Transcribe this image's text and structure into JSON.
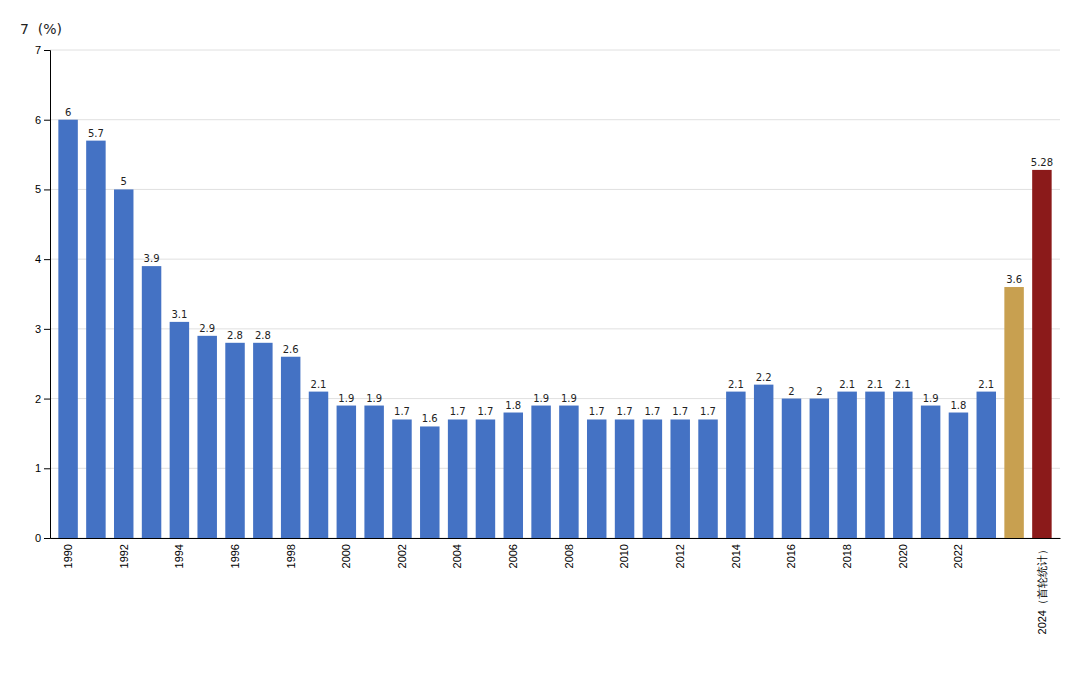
{
  "chart_data": {
    "type": "bar",
    "ylabel": "7  (%)",
    "categories": [
      "1990",
      null,
      "1992",
      null,
      "1994",
      null,
      "1996",
      null,
      "1998",
      null,
      "2000",
      null,
      "2002",
      null,
      "2004",
      null,
      "2006",
      null,
      "2008",
      null,
      "2010",
      null,
      "2012",
      null,
      "2014",
      null,
      "2016",
      null,
      "2018",
      null,
      "2020",
      null,
      "2022",
      null,
      null,
      "2024（首轮统计）"
    ],
    "values": [
      6.0,
      5.7,
      5.0,
      3.9,
      3.1,
      2.9,
      2.8,
      2.8,
      2.6,
      2.1,
      1.9,
      1.9,
      1.7,
      1.6,
      1.7,
      1.7,
      1.8,
      1.9,
      1.9,
      1.7,
      1.7,
      1.7,
      1.7,
      1.7,
      2.1,
      2.2,
      2.0,
      2.0,
      2.1,
      2.1,
      2.1,
      1.9,
      1.8,
      2.1,
      3.6,
      5.28
    ],
    "colors": [
      "#4472C4",
      "#4472C4",
      "#4472C4",
      "#4472C4",
      "#4472C4",
      "#4472C4",
      "#4472C4",
      "#4472C4",
      "#4472C4",
      "#4472C4",
      "#4472C4",
      "#4472C4",
      "#4472C4",
      "#4472C4",
      "#4472C4",
      "#4472C4",
      "#4472C4",
      "#4472C4",
      "#4472C4",
      "#4472C4",
      "#4472C4",
      "#4472C4",
      "#4472C4",
      "#4472C4",
      "#4472C4",
      "#4472C4",
      "#4472C4",
      "#4472C4",
      "#4472C4",
      "#4472C4",
      "#4472C4",
      "#4472C4",
      "#4472C4",
      "#4472C4",
      "#C8A050",
      "#8B1A1A"
    ],
    "ylim": [
      0,
      7
    ],
    "yticks": [
      0,
      1,
      2,
      3,
      4,
      5,
      6,
      7
    ],
    "grid": true,
    "data_labels": true
  }
}
